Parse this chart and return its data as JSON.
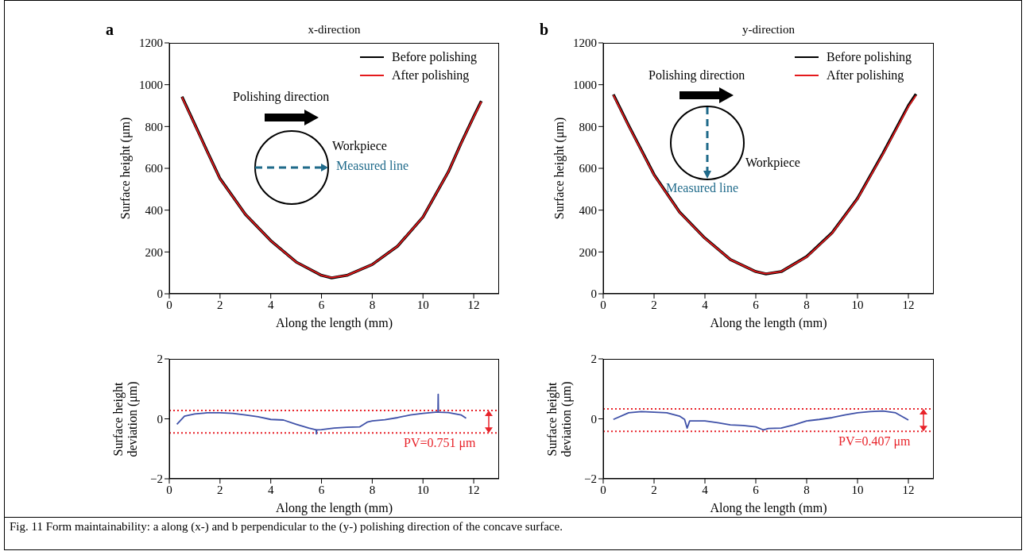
{
  "chart_data": [
    {
      "type": "line",
      "title": "x-direction",
      "xlabel": "Along the length (mm)",
      "ylabel": "Surface height (μm)",
      "xlim": [
        0,
        13
      ],
      "xticks": [
        0,
        2,
        4,
        6,
        8,
        10,
        12
      ],
      "ylim": [
        0,
        1200
      ],
      "yticks": [
        0,
        200,
        400,
        600,
        800,
        1000,
        1200
      ],
      "legend": "top right",
      "annotations": [
        "a",
        "Polishing direction",
        "Workpiece",
        "Measured line"
      ],
      "x": [
        0.5,
        1,
        1.5,
        2,
        3,
        4,
        5,
        6,
        6.4,
        7,
        8,
        9,
        10,
        11,
        11.5,
        12,
        12.3
      ],
      "series": [
        {
          "name": "Before polishing",
          "color": "#000000",
          "values": [
            943,
            812,
            680,
            551,
            380,
            254,
            152,
            88,
            76,
            88,
            140,
            228,
            367,
            583,
            720,
            848,
            922
          ]
        },
        {
          "name": "After polishing",
          "color": "#e41a1c",
          "values": [
            940,
            810,
            678,
            550,
            380,
            254,
            152,
            88,
            77,
            88,
            140,
            228,
            367,
            583,
            718,
            846,
            918
          ]
        }
      ]
    },
    {
      "type": "line",
      "title": "y-direction",
      "xlabel": "Along the length (mm)",
      "ylabel": "Surface height (μm)",
      "xlim": [
        0,
        13
      ],
      "xticks": [
        0,
        2,
        4,
        6,
        8,
        10,
        12
      ],
      "ylim": [
        0,
        1200
      ],
      "yticks": [
        0,
        200,
        400,
        600,
        800,
        1000,
        1200
      ],
      "legend": "top right",
      "annotations": [
        "b",
        "Polishing direction",
        "Workpiece",
        "Measured line"
      ],
      "x": [
        0.4,
        1,
        2,
        3,
        4,
        5,
        6,
        6.4,
        7,
        8,
        9,
        10,
        11,
        12,
        12.3
      ],
      "series": [
        {
          "name": "Before polishing",
          "color": "#000000",
          "values": [
            953,
            805,
            570,
            391,
            266,
            164,
            106,
            95,
            106,
            178,
            292,
            456,
            672,
            900,
            955
          ]
        },
        {
          "name": "After polishing",
          "color": "#e41a1c",
          "values": [
            950,
            803,
            568,
            390,
            265,
            164,
            106,
            96,
            106,
            176,
            290,
            454,
            668,
            895,
            948
          ]
        }
      ]
    },
    {
      "type": "line",
      "xlabel": "Along the length (mm)",
      "ylabel": "Surface height deviation (μm)",
      "xlim": [
        0,
        13
      ],
      "xticks": [
        0,
        2,
        4,
        6,
        8,
        10,
        12
      ],
      "ylim": [
        -2,
        2
      ],
      "yticks": [
        {
          "value": -2,
          "label": "−2"
        },
        0,
        2
      ],
      "ref_lines": [
        {
          "axis": "y",
          "value": 0.28,
          "color": "#e8232a",
          "line_style": "dotted"
        },
        {
          "axis": "y",
          "value": -0.47,
          "color": "#e8232a",
          "line_style": "dotted"
        }
      ],
      "annotations": [
        "PV=0.751 μm"
      ],
      "series": [
        {
          "color": "#3f51a8",
          "x": [
            0.3,
            0.6,
            1,
            1.5,
            2,
            2.5,
            3,
            3.5,
            4,
            4.5,
            5,
            5.5,
            5.79,
            5.8,
            5.81,
            6,
            6.5,
            7,
            7.5,
            7.8,
            8,
            8.5,
            9,
            9.5,
            10,
            10.5,
            10.59,
            10.6,
            10.61,
            11,
            11.5,
            11.7
          ],
          "values": [
            -0.18,
            0.09,
            0.16,
            0.2,
            0.2,
            0.18,
            0.13,
            0.07,
            -0.02,
            -0.04,
            -0.18,
            -0.31,
            -0.37,
            -0.5,
            -0.37,
            -0.36,
            -0.31,
            -0.28,
            -0.27,
            -0.11,
            -0.07,
            -0.03,
            0.04,
            0.13,
            0.18,
            0.22,
            0.22,
            0.82,
            0.22,
            0.21,
            0.13,
            0.02
          ]
        }
      ]
    },
    {
      "type": "line",
      "xlabel": "Along the length (mm)",
      "ylabel": "Surface height deviation (μm)",
      "xlim": [
        0,
        13
      ],
      "xticks": [
        0,
        2,
        4,
        6,
        8,
        10,
        12
      ],
      "ylim": [
        -2,
        2
      ],
      "yticks": [
        {
          "value": -2,
          "label": "−2"
        },
        0,
        2
      ],
      "ref_lines": [
        {
          "axis": "y",
          "value": 0.33,
          "color": "#e8232a",
          "line_style": "dotted"
        },
        {
          "axis": "y",
          "value": -0.42,
          "color": "#e8232a",
          "line_style": "dotted"
        }
      ],
      "annotations": [
        "PV=0.407 μm",
        "Fig. 11 Form maintainability: a along (x-) and b perpendicular to the (y-) polishing direction of the concave surface."
      ],
      "series": [
        {
          "color": "#3f51a8",
          "x": [
            0.4,
            1,
            1.5,
            2,
            2.5,
            3,
            3.2,
            3.3,
            3.4,
            4,
            4.5,
            5,
            5.5,
            6,
            6.3,
            6.5,
            7,
            7.5,
            8,
            8.5,
            9,
            9.5,
            10,
            10.5,
            11,
            11.5,
            12
          ],
          "values": [
            -0.02,
            0.2,
            0.24,
            0.22,
            0.2,
            0.09,
            -0.02,
            -0.31,
            -0.07,
            -0.07,
            -0.13,
            -0.2,
            -0.22,
            -0.27,
            -0.37,
            -0.32,
            -0.31,
            -0.2,
            -0.07,
            -0.02,
            0.04,
            0.13,
            0.2,
            0.24,
            0.26,
            0.2,
            -0.04
          ]
        }
      ]
    }
  ]
}
